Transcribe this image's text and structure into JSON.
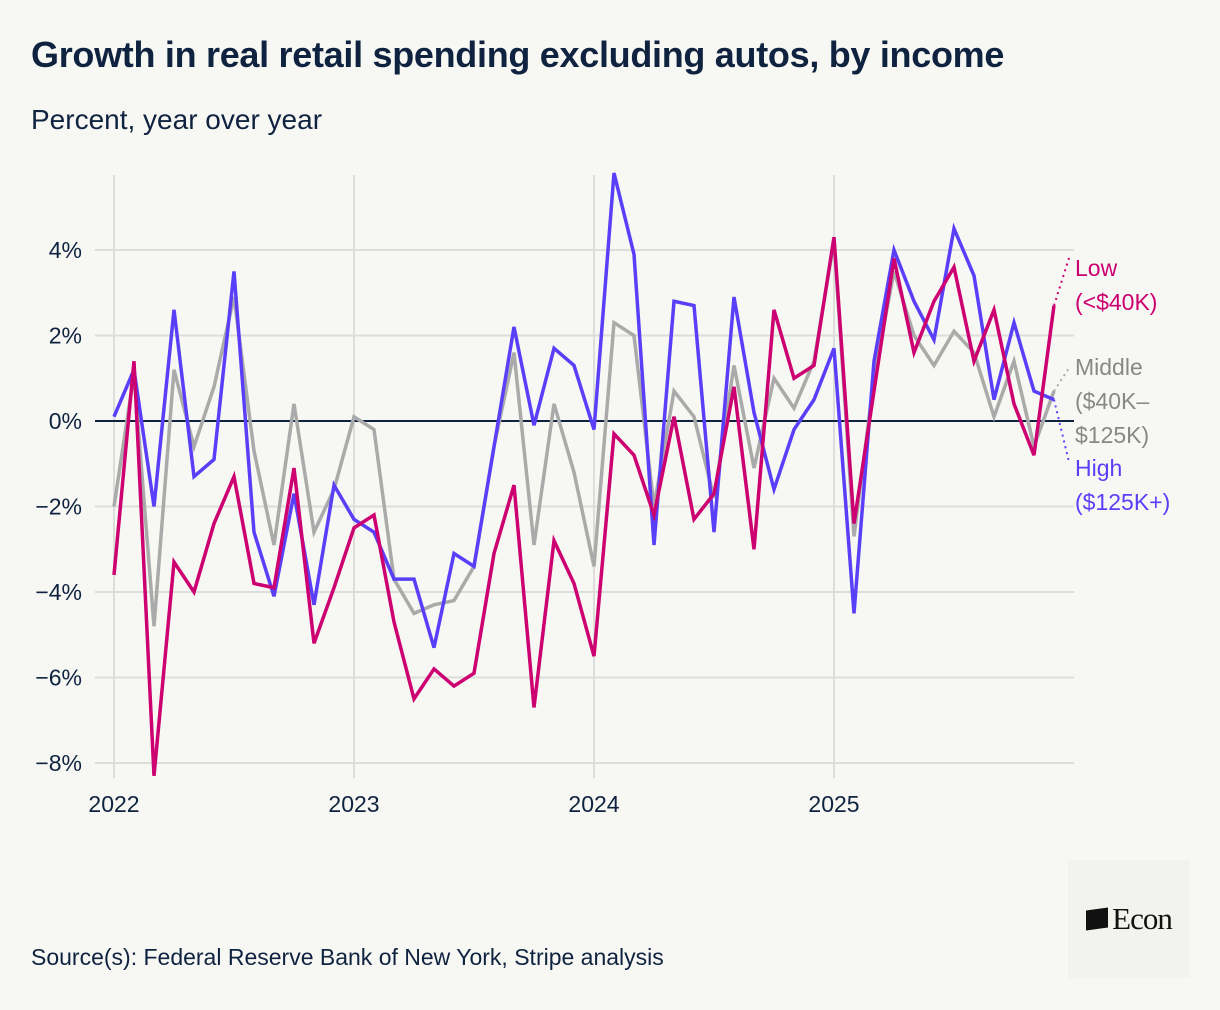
{
  "title": "Growth in real retail spending excluding autos, by income",
  "subtitle": "Percent, year over year",
  "source": "Source(s): Federal Reserve Bank of New York, Stripe analysis",
  "logo": "Econ",
  "chart_data": {
    "type": "line",
    "title": "Growth in real retail spending excluding autos, by income",
    "ylabel": "Percent, year over year",
    "xlabel": "",
    "x_start": "2022-01",
    "frequency": "monthly",
    "x_ticks": [
      "2022",
      "2023",
      "2024",
      "2025"
    ],
    "y_ticks": [
      4,
      2,
      0,
      -2,
      -4,
      -6,
      -8
    ],
    "y_tick_labels": [
      "4%",
      "2%",
      "0%",
      "−2%",
      "−4%",
      "−6%",
      "−8%"
    ],
    "ylim": [
      -8.3,
      5.8
    ],
    "grid": true,
    "legend": "right, direct labels",
    "series": [
      {
        "name": "Middle",
        "label_lines": [
          "Middle",
          "($40K–",
          "$125K)"
        ],
        "color": "#aaaaaa",
        "values": [
          -2.0,
          1.1,
          -4.8,
          1.2,
          -0.6,
          0.8,
          2.9,
          -0.7,
          -2.9,
          0.4,
          -2.6,
          -1.6,
          0.1,
          -0.2,
          -3.7,
          -4.5,
          -4.3,
          -4.2,
          -3.4,
          -0.6,
          1.6,
          -2.9,
          0.4,
          -1.2,
          -3.4,
          2.3,
          2.0,
          -2.0,
          0.7,
          0.1,
          -1.8,
          1.3,
          -1.1,
          1.0,
          0.3,
          1.4,
          4.2,
          -2.7,
          1.0,
          3.5,
          2.0,
          1.3,
          2.1,
          1.6,
          0.1,
          1.4,
          -0.6,
          0.7
        ]
      },
      {
        "name": "High",
        "label_lines": [
          "High",
          "($125K+)"
        ],
        "color": "#5a3ffa",
        "values": [
          0.1,
          1.2,
          -2.0,
          2.6,
          -1.3,
          -0.9,
          3.5,
          -2.6,
          -4.1,
          -1.7,
          -4.3,
          -1.5,
          -2.3,
          -2.6,
          -3.7,
          -3.7,
          -5.3,
          -3.1,
          -3.4,
          -0.6,
          2.2,
          -0.1,
          1.7,
          1.3,
          -0.2,
          5.8,
          3.9,
          -2.9,
          2.8,
          2.7,
          -2.6,
          2.9,
          0.2,
          -1.6,
          -0.2,
          0.5,
          1.7,
          -4.5,
          1.4,
          4.0,
          2.8,
          1.9,
          4.5,
          3.4,
          0.5,
          2.3,
          0.7,
          0.5
        ]
      },
      {
        "name": "Low",
        "label_lines": [
          "Low",
          "(<$40K)"
        ],
        "color": "#cc0070",
        "values": [
          -3.6,
          1.4,
          -8.3,
          -3.3,
          -4.0,
          -2.4,
          -1.3,
          -3.8,
          -3.9,
          -1.1,
          -5.2,
          -3.9,
          -2.5,
          -2.2,
          -4.7,
          -6.5,
          -5.8,
          -6.2,
          -5.9,
          -3.1,
          -1.5,
          -6.7,
          -2.8,
          -3.8,
          -5.5,
          -0.3,
          -0.8,
          -2.2,
          0.1,
          -2.3,
          -1.7,
          0.8,
          -3.0,
          2.6,
          1.0,
          1.3,
          4.3,
          -2.4,
          0.7,
          3.8,
          1.6,
          2.8,
          3.6,
          1.4,
          2.6,
          0.4,
          -0.8,
          2.7
        ]
      }
    ]
  }
}
